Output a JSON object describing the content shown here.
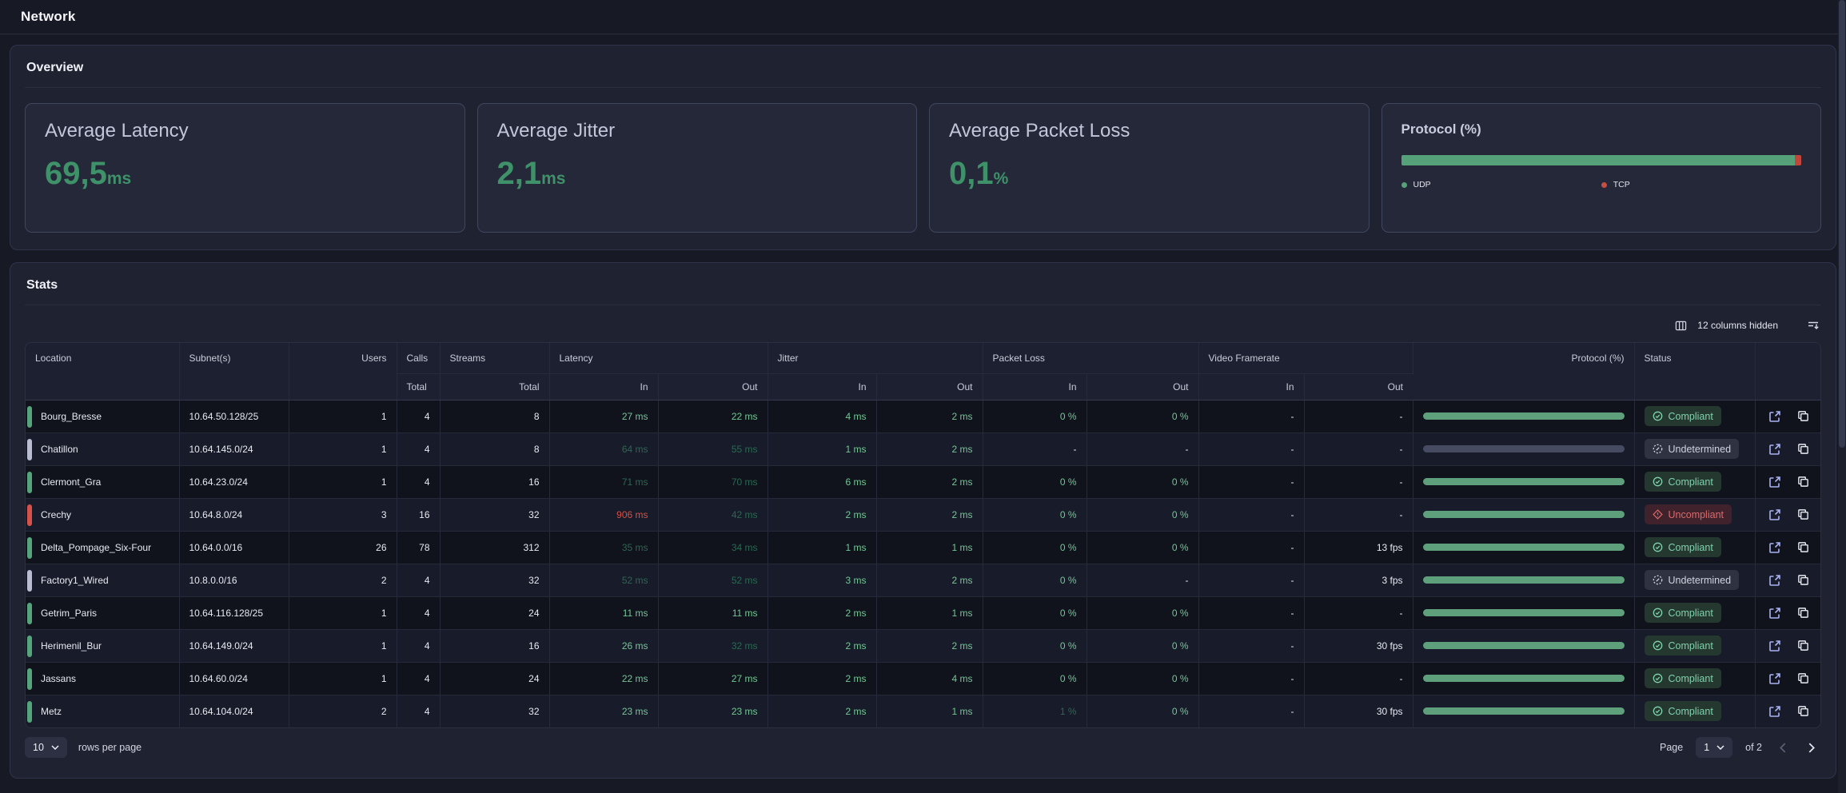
{
  "page": {
    "title": "Network"
  },
  "overview": {
    "heading": "Overview",
    "cards": [
      {
        "title": "Average Latency",
        "value": "69,5",
        "unit": "ms"
      },
      {
        "title": "Average Jitter",
        "value": "2,1",
        "unit": "ms"
      },
      {
        "title": "Average Packet Loss",
        "value": "0,1",
        "unit": "%"
      }
    ],
    "protocol_card": {
      "title": "Protocol (%)",
      "udp_percent": 98.5,
      "tcp_percent": 1.5,
      "legend": [
        {
          "label": "UDP",
          "color": "#55a179"
        },
        {
          "label": "TCP",
          "color": "#c74e44"
        }
      ]
    }
  },
  "stats": {
    "heading": "Stats",
    "columns_hidden_label": "12 columns hidden",
    "table": {
      "columns": {
        "location": "Location",
        "subnet": "Subnet(s)",
        "users": "Users",
        "calls": "Calls",
        "streams": "Streams",
        "latency": "Latency",
        "jitter": "Jitter",
        "packet_loss": "Packet Loss",
        "video_framerate": "Video Framerate",
        "protocol": "Protocol (%)",
        "status": "Status",
        "total_label": "Total",
        "in_label": "In",
        "out_label": "Out"
      },
      "statuses": {
        "compliant": {
          "label": "Compliant"
        },
        "undetermined": {
          "label": "Undetermined"
        },
        "uncompliant": {
          "label": "Uncompliant"
        }
      },
      "rows": [
        {
          "location": "Bourg_Bresse",
          "accent": "ok",
          "subnet": "10.64.50.128/25",
          "users": "1",
          "calls": "4",
          "streams": "8",
          "metrics": [
            [
              "27 ms",
              "ok"
            ],
            [
              "22 ms",
              "ok"
            ],
            [
              "4 ms",
              "ok"
            ],
            [
              "2 ms",
              "ok"
            ],
            [
              "0 %",
              "ok"
            ],
            [
              "0 %",
              "ok"
            ],
            [
              "-",
              "plain"
            ],
            [
              "-",
              "plain"
            ]
          ],
          "protocol": "udp",
          "status": "compliant"
        },
        {
          "location": "Chatillon",
          "accent": "undetermined",
          "subnet": "10.64.145.0/24",
          "users": "1",
          "calls": "4",
          "streams": "8",
          "metrics": [
            [
              "64 ms",
              "warn"
            ],
            [
              "55 ms",
              "warn"
            ],
            [
              "1 ms",
              "ok"
            ],
            [
              "2 ms",
              "ok"
            ],
            [
              "-",
              "plain"
            ],
            [
              "-",
              "plain"
            ],
            [
              "-",
              "plain"
            ],
            [
              "-",
              "plain"
            ]
          ],
          "protocol": "undetermined",
          "status": "undetermined"
        },
        {
          "location": "Clermont_Gra",
          "accent": "ok",
          "subnet": "10.64.23.0/24",
          "users": "1",
          "calls": "4",
          "streams": "16",
          "metrics": [
            [
              "71 ms",
              "warn"
            ],
            [
              "70 ms",
              "warn"
            ],
            [
              "6 ms",
              "ok"
            ],
            [
              "2 ms",
              "ok"
            ],
            [
              "0 %",
              "ok"
            ],
            [
              "0 %",
              "ok"
            ],
            [
              "-",
              "plain"
            ],
            [
              "-",
              "plain"
            ]
          ],
          "protocol": "udp",
          "status": "compliant"
        },
        {
          "location": "Crechy",
          "accent": "uncompliant",
          "subnet": "10.64.8.0/24",
          "users": "3",
          "calls": "16",
          "streams": "32",
          "metrics": [
            [
              "906 ms",
              "bad"
            ],
            [
              "42 ms",
              "warn"
            ],
            [
              "2 ms",
              "ok"
            ],
            [
              "2 ms",
              "ok"
            ],
            [
              "0 %",
              "ok"
            ],
            [
              "0 %",
              "ok"
            ],
            [
              "-",
              "plain"
            ],
            [
              "-",
              "plain"
            ]
          ],
          "protocol": "udp",
          "status": "uncompliant"
        },
        {
          "location": "Delta_Pompage_Six-Four",
          "accent": "ok",
          "subnet": "10.64.0.0/16",
          "users": "26",
          "calls": "78",
          "streams": "312",
          "metrics": [
            [
              "35 ms",
              "warn"
            ],
            [
              "34 ms",
              "warn"
            ],
            [
              "1 ms",
              "ok"
            ],
            [
              "1 ms",
              "ok"
            ],
            [
              "0 %",
              "ok"
            ],
            [
              "0 %",
              "ok"
            ],
            [
              "-",
              "plain"
            ],
            [
              "13 fps",
              "plain"
            ]
          ],
          "protocol": "udp",
          "status": "compliant"
        },
        {
          "location": "Factory1_Wired",
          "accent": "undetermined",
          "subnet": "10.8.0.0/16",
          "users": "2",
          "calls": "4",
          "streams": "32",
          "metrics": [
            [
              "52 ms",
              "warn"
            ],
            [
              "52 ms",
              "warn"
            ],
            [
              "3 ms",
              "ok"
            ],
            [
              "2 ms",
              "ok"
            ],
            [
              "0 %",
              "ok"
            ],
            [
              "-",
              "plain"
            ],
            [
              "-",
              "plain"
            ],
            [
              "3 fps",
              "plain"
            ]
          ],
          "protocol": "udp",
          "status": "undetermined"
        },
        {
          "location": "Getrim_Paris",
          "accent": "ok",
          "subnet": "10.64.116.128/25",
          "users": "1",
          "calls": "4",
          "streams": "24",
          "metrics": [
            [
              "11 ms",
              "ok"
            ],
            [
              "11 ms",
              "ok"
            ],
            [
              "2 ms",
              "ok"
            ],
            [
              "1 ms",
              "ok"
            ],
            [
              "0 %",
              "ok"
            ],
            [
              "0 %",
              "ok"
            ],
            [
              "-",
              "plain"
            ],
            [
              "-",
              "plain"
            ]
          ],
          "protocol": "udp",
          "status": "compliant"
        },
        {
          "location": "Herimenil_Bur",
          "accent": "ok",
          "subnet": "10.64.149.0/24",
          "users": "1",
          "calls": "4",
          "streams": "16",
          "metrics": [
            [
              "26 ms",
              "ok"
            ],
            [
              "32 ms",
              "warn"
            ],
            [
              "2 ms",
              "ok"
            ],
            [
              "2 ms",
              "ok"
            ],
            [
              "0 %",
              "ok"
            ],
            [
              "0 %",
              "ok"
            ],
            [
              "-",
              "plain"
            ],
            [
              "30 fps",
              "plain"
            ]
          ],
          "protocol": "udp",
          "status": "compliant"
        },
        {
          "location": "Jassans",
          "accent": "ok",
          "subnet": "10.64.60.0/24",
          "users": "1",
          "calls": "4",
          "streams": "24",
          "metrics": [
            [
              "22 ms",
              "ok"
            ],
            [
              "27 ms",
              "ok"
            ],
            [
              "2 ms",
              "ok"
            ],
            [
              "4 ms",
              "ok"
            ],
            [
              "0 %",
              "ok"
            ],
            [
              "0 %",
              "ok"
            ],
            [
              "-",
              "plain"
            ],
            [
              "-",
              "plain"
            ]
          ],
          "protocol": "udp",
          "status": "compliant"
        },
        {
          "location": "Metz",
          "accent": "ok",
          "subnet": "10.64.104.0/24",
          "users": "2",
          "calls": "4",
          "streams": "32",
          "metrics": [
            [
              "23 ms",
              "ok"
            ],
            [
              "23 ms",
              "ok"
            ],
            [
              "2 ms",
              "ok"
            ],
            [
              "1 ms",
              "ok"
            ],
            [
              "1 %",
              "warn"
            ],
            [
              "0 %",
              "ok"
            ],
            [
              "-",
              "plain"
            ],
            [
              "30 fps",
              "plain"
            ]
          ],
          "protocol": "udp",
          "status": "compliant"
        }
      ]
    },
    "pagination": {
      "rows_per_page_value": "10",
      "rows_per_page_label": "rows per page",
      "page_label": "Page",
      "page_value": "1",
      "of_label": "of 2"
    }
  },
  "colors": {
    "value_green": "#3f9169",
    "cell_green_bright": "#74c795",
    "cell_green_dim": "#2b6852",
    "cell_red": "#d94f45",
    "accent_green": "#55a47b",
    "accent_gray": "#b9bdd2",
    "accent_red": "#d5524a",
    "udp_bar": "#55a179",
    "tcp_bar": "#c0463c"
  }
}
